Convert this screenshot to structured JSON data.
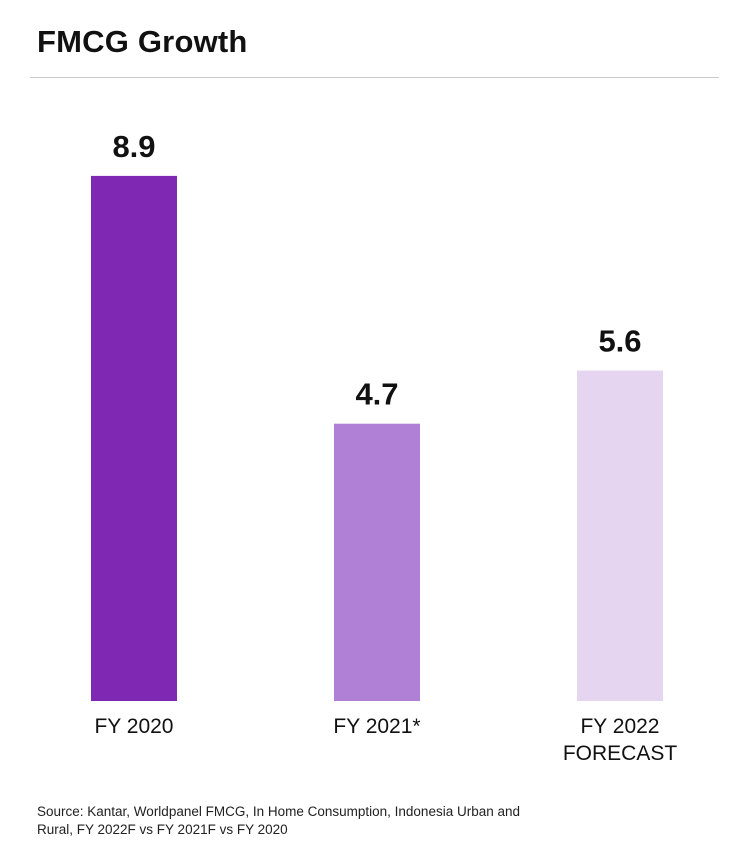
{
  "chart_data": {
    "type": "bar",
    "title": "FMCG Growth",
    "categories": [
      [
        "FY 2020"
      ],
      [
        "FY 2021*"
      ],
      [
        "FY 2022",
        "FORECAST"
      ]
    ],
    "values": [
      8.9,
      4.7,
      5.6
    ],
    "value_labels": [
      "8.9",
      "4.7",
      "5.6"
    ],
    "colors": [
      "#7f28b4",
      "#b07fd6",
      "#e6d5f0"
    ],
    "ylim": [
      0,
      10
    ],
    "grid": false,
    "legend": "none"
  },
  "footer": {
    "source": "Source: Kantar, Worldpanel FMCG, In Home Consumption, Indonesia Urban and Rural, FY 2022F vs FY 2021F vs FY 2020"
  }
}
